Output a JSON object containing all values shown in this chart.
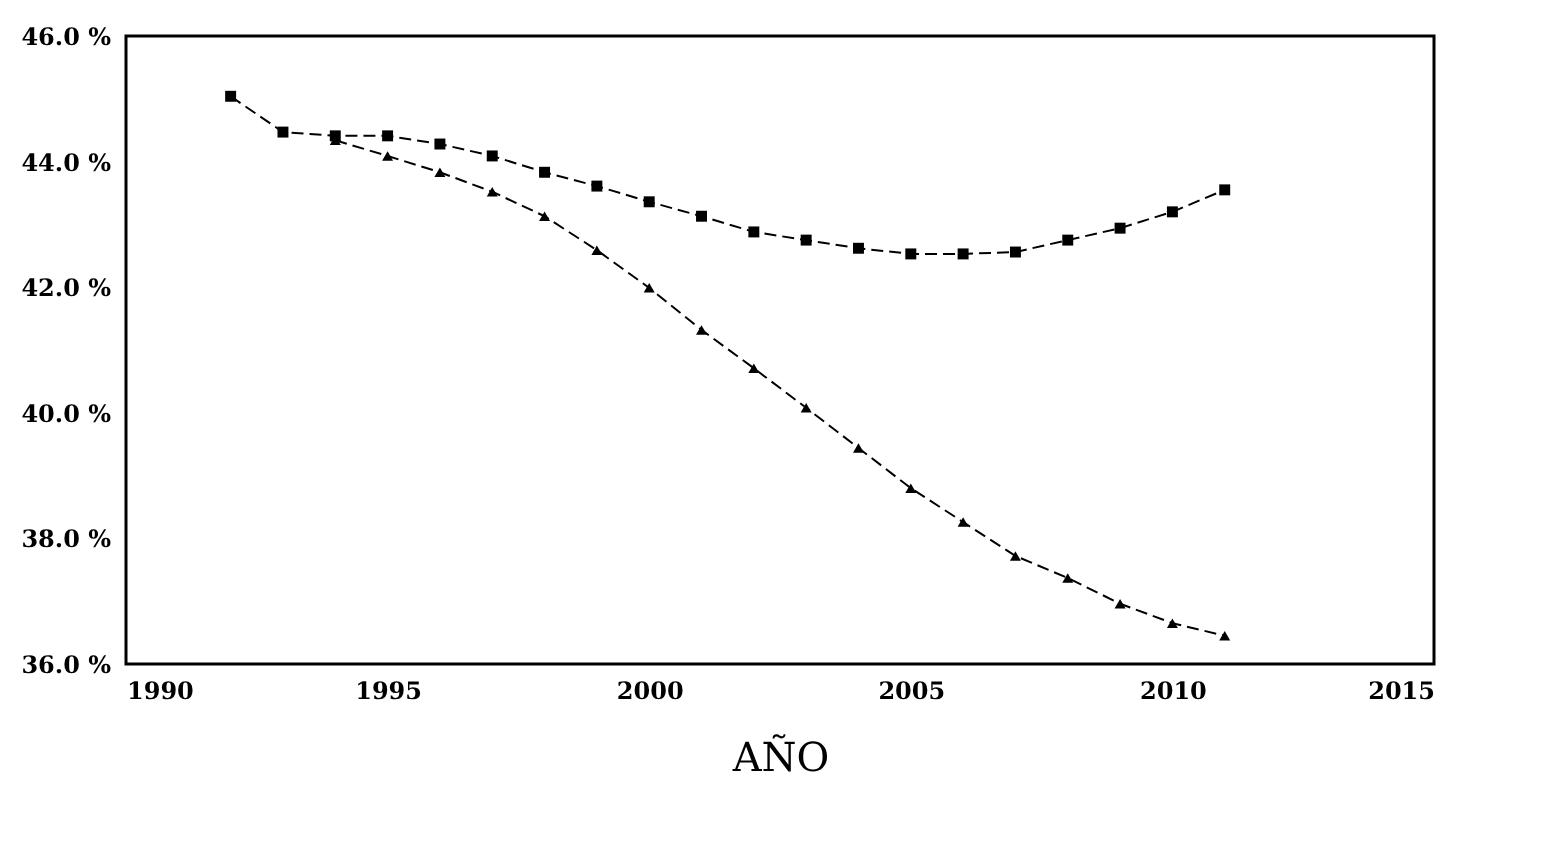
{
  "chart_data": {
    "type": "line",
    "xlabel": "AÑO",
    "xlim": [
      1990,
      2015
    ],
    "xticks": [
      1990,
      1995,
      2000,
      2005,
      2010,
      2015
    ],
    "ylim": [
      36,
      46
    ],
    "yticks": [
      {
        "value": 36,
        "label": "36.0 %"
      },
      {
        "value": 38,
        "label": "38.0 %"
      },
      {
        "value": 40,
        "label": "40.0 %"
      },
      {
        "value": 42,
        "label": "42.0 %"
      },
      {
        "value": 44,
        "label": "44.0 %"
      },
      {
        "value": 46,
        "label": "46.0 %"
      }
    ],
    "grid": false,
    "line_style": "dashed",
    "series": [
      {
        "color": "#000000",
        "marker": "square",
        "x": [
          1992,
          1993,
          1994,
          1995,
          1996,
          1997,
          1998,
          1999,
          2000,
          2001,
          2002,
          2003,
          2004,
          2005,
          2006,
          2007,
          2008,
          2009,
          2010,
          2011
        ],
        "values": [
          45.04,
          44.47,
          44.41,
          44.41,
          44.28,
          44.09,
          43.83,
          43.61,
          43.36,
          43.13,
          42.88,
          42.75,
          42.62,
          42.53,
          42.53,
          42.56,
          42.75,
          42.94,
          43.2,
          43.55
        ]
      },
      {
        "color": "#000000",
        "marker": "triangle",
        "x": [
          1994,
          1995,
          1996,
          1997,
          1998,
          1999,
          2000,
          2001,
          2002,
          2003,
          2004,
          2005,
          2006,
          2007,
          2008,
          2009,
          2010,
          2011
        ],
        "values": [
          44.34,
          44.09,
          43.83,
          43.52,
          43.13,
          42.59,
          41.99,
          41.32,
          40.71,
          40.08,
          39.44,
          38.8,
          38.26,
          37.72,
          37.37,
          36.96,
          36.65,
          36.45
        ]
      }
    ]
  }
}
